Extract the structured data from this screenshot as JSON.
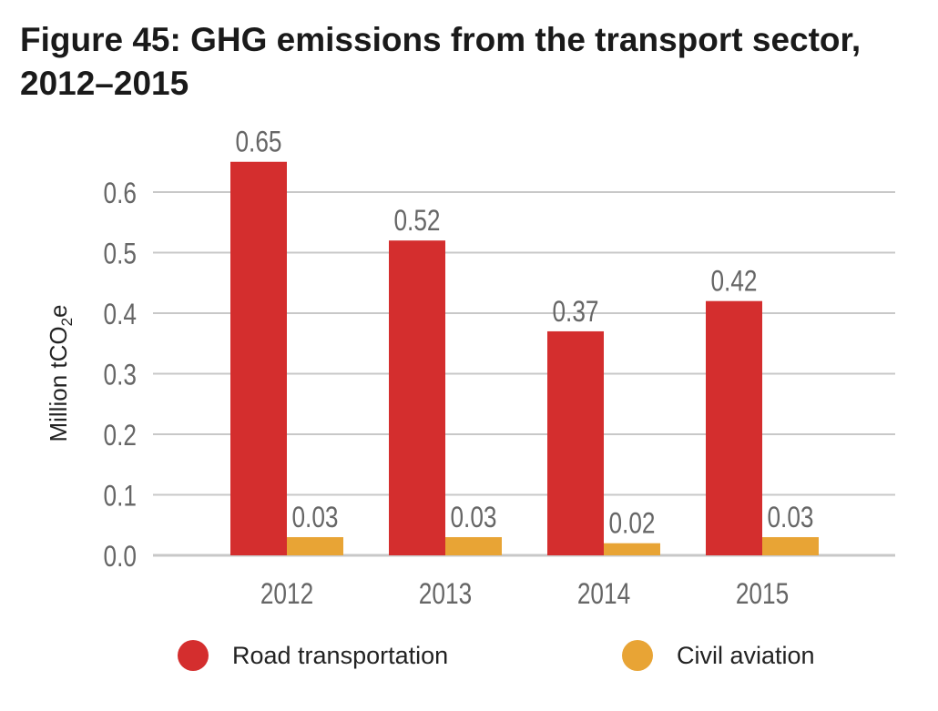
{
  "title_line1": "Figure 45: GHG emissions from the transport sector,",
  "title_line2": "2012–2015",
  "colors": {
    "road": "#d42e2e",
    "aviation": "#e8a435",
    "grid": "#c8c8c8",
    "text": "#666666"
  },
  "chart_data": {
    "type": "bar",
    "title": "Figure 45: GHG emissions from the transport sector, 2012–2015",
    "xlabel": "",
    "ylabel": "Million tCO2e",
    "categories": [
      "2012",
      "2013",
      "2014",
      "2015"
    ],
    "series": [
      {
        "name": "Road transportation",
        "values": [
          0.65,
          0.52,
          0.37,
          0.42
        ],
        "labels": [
          "0.65",
          "0.52",
          "0.37",
          "0.42"
        ]
      },
      {
        "name": "Civil aviation",
        "values": [
          0.03,
          0.03,
          0.02,
          0.03
        ],
        "labels": [
          "0.03",
          "0.03",
          "0.02",
          "0.03"
        ]
      }
    ],
    "ylim": [
      0,
      0.6
    ],
    "yticks": [
      "0.0",
      "0.1",
      "0.2",
      "0.3",
      "0.4",
      "0.5",
      "0.6"
    ],
    "grid": true,
    "legend": "bottom"
  }
}
